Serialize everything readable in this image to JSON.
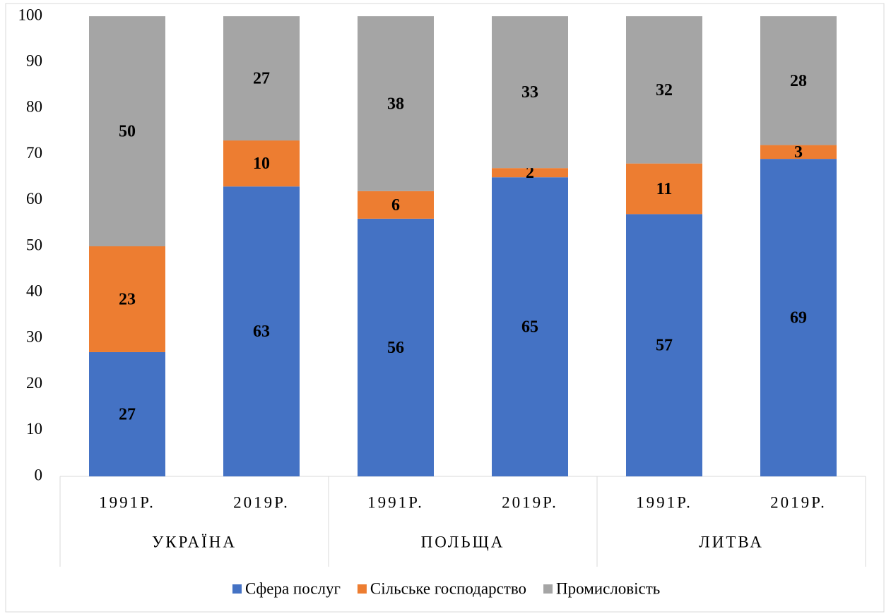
{
  "chart_data": {
    "type": "stacked_bar",
    "categories": [
      "1991Р.",
      "2019Р.",
      "1991Р.",
      "2019Р.",
      "1991Р.",
      "2019Р."
    ],
    "groups": [
      "УКРАЇНА",
      "ПОЛЬЩА",
      "ЛИТВА"
    ],
    "series": [
      {
        "name": "Сфера послуг",
        "color": "#4472c4",
        "values": [
          27,
          63,
          56,
          65,
          57,
          69
        ]
      },
      {
        "name": "Сільське господарство",
        "color": "#ed7d31",
        "values": [
          23,
          10,
          6,
          2,
          11,
          3
        ]
      },
      {
        "name": "Промисловість",
        "color": "#a5a5a5",
        "values": [
          50,
          27,
          38,
          33,
          32,
          28
        ]
      }
    ],
    "ylim": [
      0,
      100
    ],
    "yticks": [
      0,
      10,
      20,
      30,
      40,
      50,
      60,
      70,
      80,
      90,
      100
    ],
    "grid": false,
    "legend": "bottom"
  }
}
